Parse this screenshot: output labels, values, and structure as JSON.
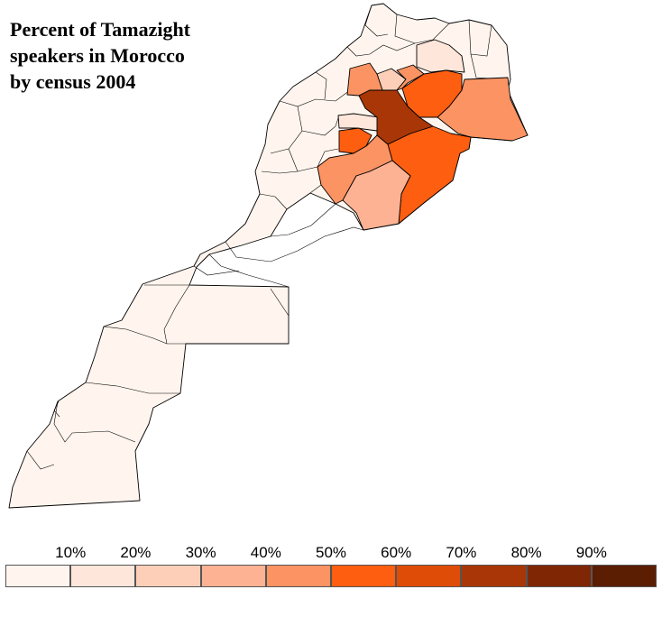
{
  "title_lines": [
    "Percent of Tamazight",
    "speakers in Morocco",
    "by census 2004"
  ],
  "legend": {
    "ticks": [
      "10%",
      "20%",
      "30%",
      "40%",
      "50%",
      "60%",
      "70%",
      "80%",
      "90%"
    ],
    "colors": [
      "#fff5ee",
      "#fee6da",
      "#fdcfb8",
      "#fcb293",
      "#fb9363",
      "#fd5e10",
      "#de4c07",
      "#a83606",
      "#7f2704",
      "#5c1e03"
    ]
  },
  "map": {
    "region_classes": [
      {
        "name": "northern-and-southern-provinces",
        "class": 0
      },
      {
        "name": "northeast-provinces",
        "class": 1
      },
      {
        "name": "middle-atlas-west",
        "class": 2
      },
      {
        "name": "ouarzazate-area",
        "class": 3
      },
      {
        "name": "eastern-region",
        "class": 4
      },
      {
        "name": "central-southeast",
        "class": 5
      },
      {
        "name": "khenifra-area",
        "class": 7
      }
    ]
  }
}
